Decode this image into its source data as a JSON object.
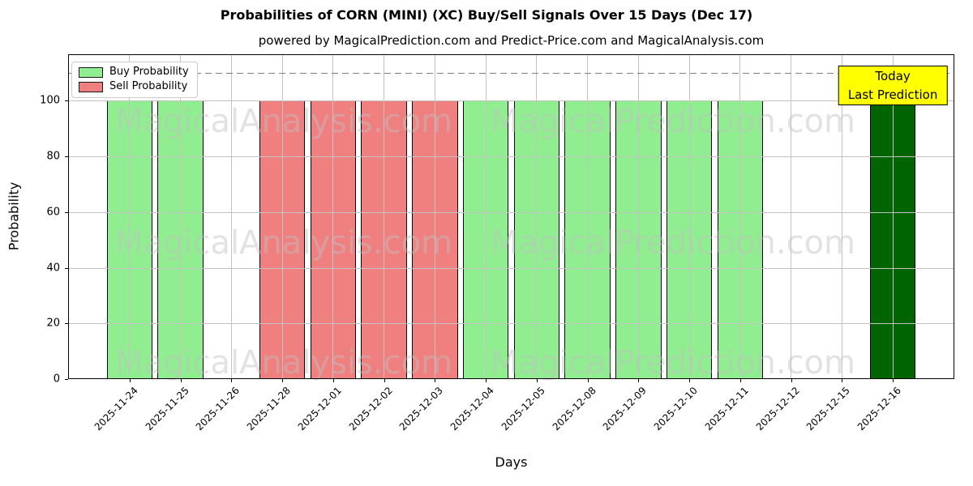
{
  "chart_data": {
    "type": "bar",
    "title": "Probabilities of CORN (MINI) (XC) Buy/Sell Signals Over 15 Days (Dec 17)",
    "subtitle": "powered by MagicalPrediction.com and Predict-Price.com and MagicalAnalysis.com",
    "xlabel": "Days",
    "ylabel": "Probability",
    "categories": [
      "2025-11-24",
      "2025-11-25",
      "2025-11-26",
      "2025-11-28",
      "2025-12-01",
      "2025-12-02",
      "2025-12-03",
      "2025-12-04",
      "2025-12-05",
      "2025-12-08",
      "2025-12-09",
      "2025-12-10",
      "2025-12-11",
      "2025-12-12",
      "2025-12-15",
      "2025-12-16"
    ],
    "series": [
      {
        "name": "Buy Probability",
        "color": "#90EE90",
        "edge_color": "#000000",
        "values": [
          100,
          100,
          0,
          0,
          0,
          0,
          0,
          100,
          100,
          100,
          100,
          100,
          100,
          0,
          0,
          0
        ]
      },
      {
        "name": "Sell Probability",
        "color": "#F08080",
        "edge_color": "#000000",
        "values": [
          0,
          0,
          0,
          100,
          100,
          100,
          100,
          0,
          0,
          0,
          0,
          0,
          0,
          0,
          0,
          0
        ]
      },
      {
        "name": "Today Last Prediction",
        "color": "#006400",
        "edge_color": "#000000",
        "values": [
          0,
          0,
          0,
          0,
          0,
          0,
          0,
          0,
          0,
          0,
          0,
          0,
          0,
          0,
          0,
          100
        ]
      }
    ],
    "yticks": [
      0,
      20,
      40,
      60,
      80,
      100
    ],
    "ylim": [
      0,
      116.7
    ],
    "bar_width_fraction": 0.9,
    "grid": true,
    "legend_position": "upper-left",
    "hline": {
      "y": 110,
      "color": "#7f7f7f",
      "style": "dashed"
    },
    "annotation": {
      "line1": "Today",
      "line2": "Last Prediction",
      "bg_color": "#FFFF00",
      "x_index": 15
    },
    "watermarks": {
      "left_text": "MagicalAnalysis.com",
      "right_text": "MagicalPrediction.com"
    },
    "colors": {
      "grid": "#c3c3c3",
      "watermark": "rgba(190,190,190,0.45)",
      "axis": "#000000"
    }
  }
}
